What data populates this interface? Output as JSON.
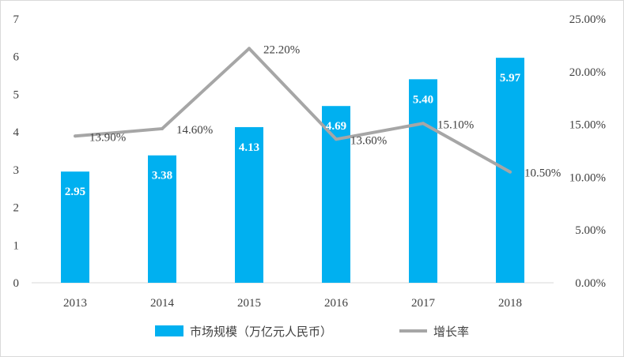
{
  "chart_data": {
    "type": "bar",
    "categories": [
      "2013",
      "2014",
      "2015",
      "2016",
      "2017",
      "2018"
    ],
    "series": [
      {
        "name": "市场规模（万亿元人民币）",
        "type": "bar",
        "axis": "left",
        "values": [
          2.95,
          3.38,
          4.13,
          4.69,
          5.4,
          5.97
        ],
        "labels": [
          "2.95",
          "3.38",
          "4.13",
          "4.69",
          "5.40",
          "5.97"
        ],
        "color": "#00b0f0"
      },
      {
        "name": "增长率",
        "type": "line",
        "axis": "right",
        "values": [
          13.9,
          14.6,
          22.2,
          13.6,
          15.1,
          10.5
        ],
        "labels": [
          "13.90%",
          "14.60%",
          "22.20%",
          "13.60%",
          "15.10%",
          "10.50%"
        ],
        "color": "#a6a6a6"
      }
    ],
    "y_left": {
      "ylim": [
        0,
        7
      ],
      "ticks": [
        "0",
        "1",
        "2",
        "3",
        "4",
        "5",
        "6",
        "7"
      ]
    },
    "y_right": {
      "ylim": [
        0,
        25
      ],
      "ticks": [
        "0.00%",
        "5.00%",
        "10.00%",
        "15.00%",
        "20.00%",
        "25.00%"
      ]
    },
    "grid": false,
    "legend": "bottom"
  }
}
